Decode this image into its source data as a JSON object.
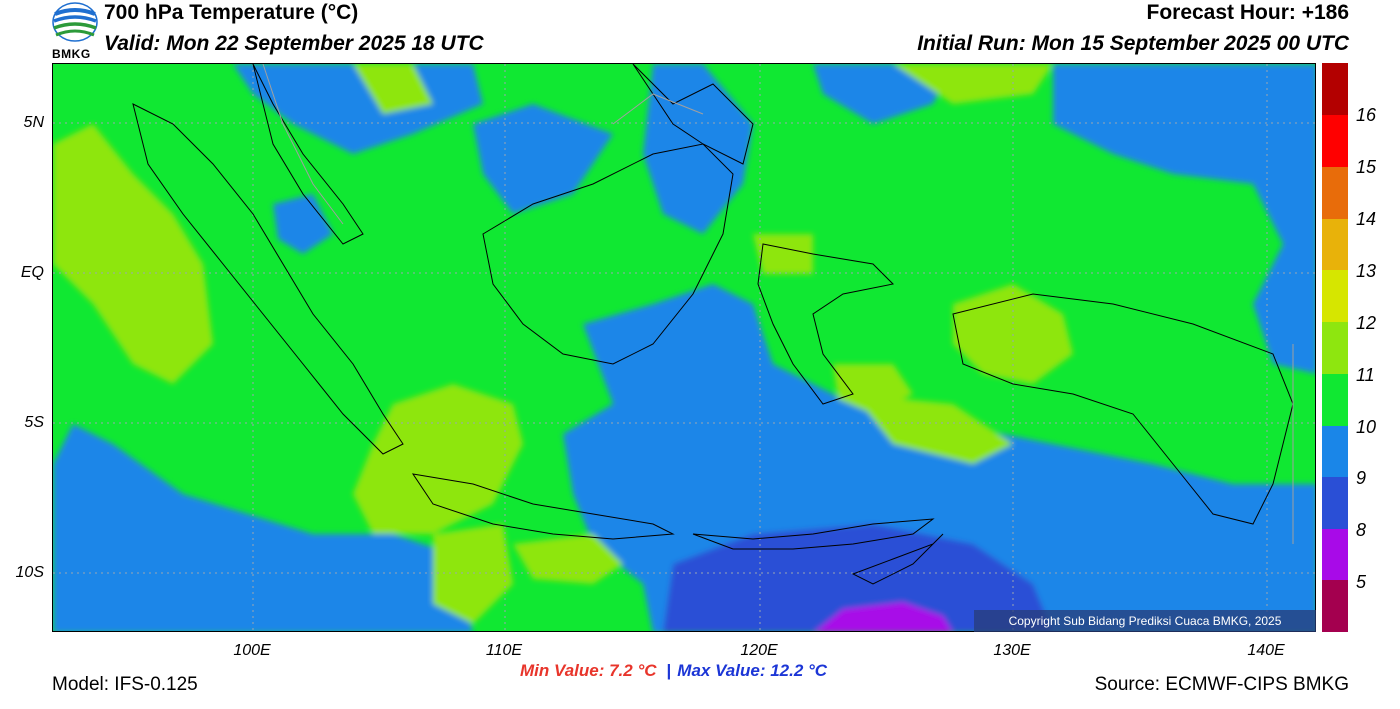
{
  "header": {
    "title": "700 hPa Temperature (°C)",
    "valid": "Valid: Mon 22 September 2025 18 UTC",
    "forecast_hour": "Forecast Hour: +186",
    "initial_run": "Initial Run: Mon 15 September 2025 00 UTC"
  },
  "logo": {
    "text": "BMKG"
  },
  "axes": {
    "lat_labels": [
      "5N",
      "EQ",
      "5S",
      "10S"
    ],
    "lon_labels": [
      "100E",
      "110E",
      "120E",
      "130E",
      "140E"
    ]
  },
  "colorbar": {
    "labels": [
      "16",
      "15",
      "14",
      "13",
      "12",
      "11",
      "10",
      "9",
      "8",
      "5"
    ],
    "colors": [
      "#b30000",
      "#ff0000",
      "#e86c0a",
      "#e8b20a",
      "#d6e600",
      "#8ee60f",
      "#10e832",
      "#1a86e8",
      "#2a4fd6",
      "#a80ae8",
      "#a4004f"
    ]
  },
  "map": {
    "palette": {
      "green": "#10e832",
      "lightgreen": "#8ee60f",
      "blue": "#1a86e8",
      "darkblue": "#2a4fd6",
      "purple": "#a80ae8"
    }
  },
  "copyright": "Copyright Sub Bidang Prediksi Cuaca BMKG, 2025",
  "stats": {
    "min": "Min Value: 7.2 °C",
    "sep": "|",
    "max": "Max Value: 12.2 °C"
  },
  "footer": {
    "model": "Model: IFS-0.125",
    "source": "Source: ECMWF-CIPS BMKG"
  }
}
